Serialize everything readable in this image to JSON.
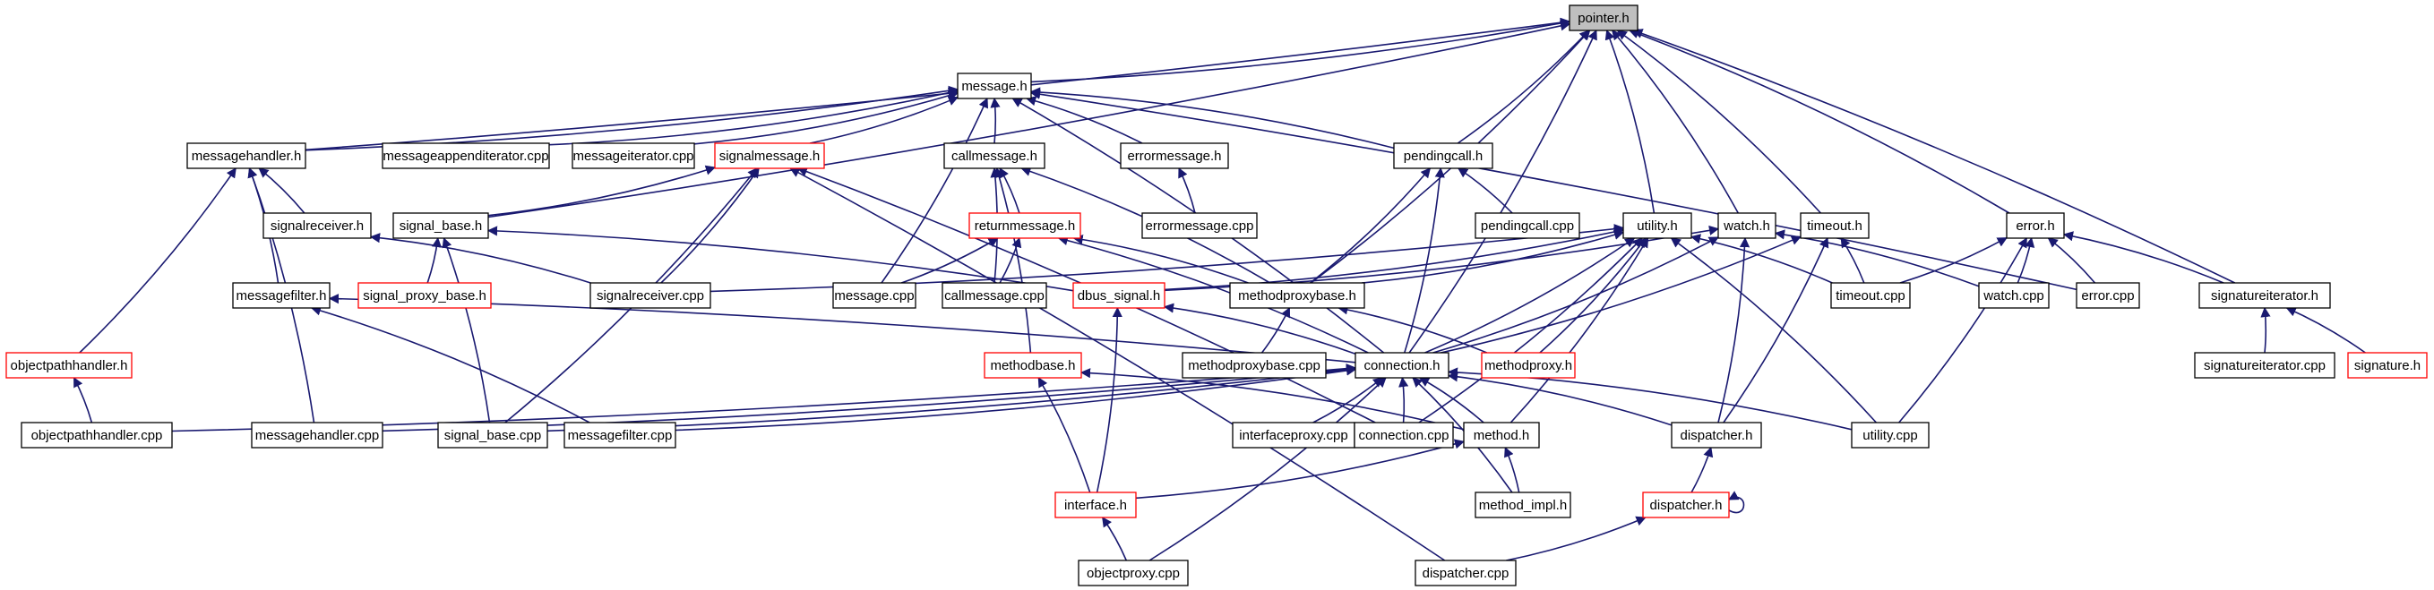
{
  "colors": {
    "edge": "#191970",
    "box_border": "#000000",
    "incomplete_border": "#ff0000",
    "root_fill": "#bfbfbf"
  },
  "nodes": [
    {
      "id": "pointer_h",
      "label": "pointer.h",
      "style": "root"
    },
    {
      "id": "message_h",
      "label": "message.h",
      "style": "normal"
    },
    {
      "id": "messagehandler_h",
      "label": "messagehandler.h",
      "style": "normal"
    },
    {
      "id": "messageappenditerator_cpp",
      "label": "messageappenditerator.cpp",
      "style": "normal"
    },
    {
      "id": "messageiterator_cpp",
      "label": "messageiterator.cpp",
      "style": "normal"
    },
    {
      "id": "signalmessage_h",
      "label": "signalmessage.h",
      "style": "red"
    },
    {
      "id": "callmessage_h",
      "label": "callmessage.h",
      "style": "normal"
    },
    {
      "id": "errormessage_h",
      "label": "errormessage.h",
      "style": "normal"
    },
    {
      "id": "pendingcall_h",
      "label": "pendingcall.h",
      "style": "normal"
    },
    {
      "id": "signalreceiver_h",
      "label": "signalreceiver.h",
      "style": "normal"
    },
    {
      "id": "signal_base_h",
      "label": "signal_base.h",
      "style": "normal"
    },
    {
      "id": "returnmessage_h",
      "label": "returnmessage.h",
      "style": "red"
    },
    {
      "id": "errormessage_cpp",
      "label": "errormessage.cpp",
      "style": "normal"
    },
    {
      "id": "pendingcall_cpp",
      "label": "pendingcall.cpp",
      "style": "normal"
    },
    {
      "id": "utility_h",
      "label": "utility.h",
      "style": "normal"
    },
    {
      "id": "watch_h",
      "label": "watch.h",
      "style": "normal"
    },
    {
      "id": "timeout_h",
      "label": "timeout.h",
      "style": "normal"
    },
    {
      "id": "error_h",
      "label": "error.h",
      "style": "normal"
    },
    {
      "id": "messagefilter_h",
      "label": "messagefilter.h",
      "style": "normal"
    },
    {
      "id": "signal_proxy_base_h",
      "label": "signal_proxy_base.h",
      "style": "red"
    },
    {
      "id": "signalreceiver_cpp",
      "label": "signalreceiver.cpp",
      "style": "normal"
    },
    {
      "id": "message_cpp",
      "label": "message.cpp",
      "style": "normal"
    },
    {
      "id": "callmessage_cpp",
      "label": "callmessage.cpp",
      "style": "normal"
    },
    {
      "id": "dbus_signal_h",
      "label": "dbus_signal.h",
      "style": "red"
    },
    {
      "id": "methodproxybase_h",
      "label": "methodproxybase.h",
      "style": "normal"
    },
    {
      "id": "timeout_cpp",
      "label": "timeout.cpp",
      "style": "normal"
    },
    {
      "id": "watch_cpp",
      "label": "watch.cpp",
      "style": "normal"
    },
    {
      "id": "error_cpp",
      "label": "error.cpp",
      "style": "normal"
    },
    {
      "id": "signatureiterator_h",
      "label": "signatureiterator.h",
      "style": "normal"
    },
    {
      "id": "objectpathhandler_h",
      "label": "objectpathhandler.h",
      "style": "red"
    },
    {
      "id": "methodbase_h",
      "label": "methodbase.h",
      "style": "red"
    },
    {
      "id": "methodproxybase_cpp",
      "label": "methodproxybase.cpp",
      "style": "normal"
    },
    {
      "id": "connection_h",
      "label": "connection.h",
      "style": "normal"
    },
    {
      "id": "methodproxy_h",
      "label": "methodproxy.h",
      "style": "red"
    },
    {
      "id": "signatureiterator_cpp",
      "label": "signatureiterator.cpp",
      "style": "normal"
    },
    {
      "id": "signature_h",
      "label": "signature.h",
      "style": "red"
    },
    {
      "id": "objectpathhandler_cpp",
      "label": "objectpathhandler.cpp",
      "style": "normal"
    },
    {
      "id": "messagehandler_cpp",
      "label": "messagehandler.cpp",
      "style": "normal"
    },
    {
      "id": "signal_base_cpp",
      "label": "signal_base.cpp",
      "style": "normal"
    },
    {
      "id": "messagefilter_cpp",
      "label": "messagefilter.cpp",
      "style": "normal"
    },
    {
      "id": "interfaceproxy_cpp",
      "label": "interfaceproxy.cpp",
      "style": "normal"
    },
    {
      "id": "connection_cpp",
      "label": "connection.cpp",
      "style": "normal"
    },
    {
      "id": "method_h",
      "label": "method.h",
      "style": "normal"
    },
    {
      "id": "dispatcher_h",
      "label": "dispatcher.h",
      "style": "normal"
    },
    {
      "id": "utility_cpp",
      "label": "utility.cpp",
      "style": "normal"
    },
    {
      "id": "interface_h",
      "label": "interface.h",
      "style": "red"
    },
    {
      "id": "method_impl_h",
      "label": "method_impl.h",
      "style": "normal"
    },
    {
      "id": "dispatcher_h_red",
      "label": "dispatcher.h",
      "style": "red"
    },
    {
      "id": "objectproxy_cpp",
      "label": "objectproxy.cpp",
      "style": "normal"
    },
    {
      "id": "dispatcher_cpp",
      "label": "dispatcher.cpp",
      "style": "normal"
    }
  ],
  "edges": [
    [
      "message_h",
      "pointer_h"
    ],
    [
      "messagehandler_h",
      "pointer_h"
    ],
    [
      "signal_base_h",
      "pointer_h"
    ],
    [
      "pendingcall_h",
      "pointer_h"
    ],
    [
      "methodproxybase_h",
      "pointer_h"
    ],
    [
      "connection_h",
      "pointer_h"
    ],
    [
      "utility_h",
      "pointer_h"
    ],
    [
      "watch_h",
      "pointer_h"
    ],
    [
      "timeout_h",
      "pointer_h"
    ],
    [
      "error_h",
      "pointer_h"
    ],
    [
      "signatureiterator_h",
      "pointer_h"
    ],
    [
      "messagehandler_h",
      "message_h"
    ],
    [
      "messageappenditerator_cpp",
      "message_h"
    ],
    [
      "messageiterator_cpp",
      "message_h"
    ],
    [
      "signalmessage_h",
      "message_h"
    ],
    [
      "callmessage_h",
      "message_h"
    ],
    [
      "errormessage_h",
      "message_h"
    ],
    [
      "pendingcall_h",
      "message_h"
    ],
    [
      "message_cpp",
      "message_h"
    ],
    [
      "connection_h",
      "message_h"
    ],
    [
      "error_cpp",
      "message_h"
    ],
    [
      "signalreceiver_h",
      "messagehandler_h"
    ],
    [
      "messagefilter_h",
      "messagehandler_h"
    ],
    [
      "objectpathhandler_h",
      "messagehandler_h"
    ],
    [
      "messagehandler_cpp",
      "messagehandler_h"
    ],
    [
      "signal_base_h",
      "signalmessage_h"
    ],
    [
      "signalreceiver_cpp",
      "signalmessage_h"
    ],
    [
      "signal_base_cpp",
      "signalmessage_h"
    ],
    [
      "connection_cpp",
      "signalmessage_h"
    ],
    [
      "dispatcher_cpp",
      "signalmessage_h"
    ],
    [
      "returnmessage_h",
      "callmessage_h"
    ],
    [
      "callmessage_cpp",
      "callmessage_h"
    ],
    [
      "methodproxybase_h",
      "callmessage_h"
    ],
    [
      "methodbase_h",
      "callmessage_h"
    ],
    [
      "errormessage_cpp",
      "errormessage_h"
    ],
    [
      "pendingcall_cpp",
      "pendingcall_h"
    ],
    [
      "methodproxybase_h",
      "pendingcall_h"
    ],
    [
      "connection_h",
      "pendingcall_h"
    ],
    [
      "signalreceiver_cpp",
      "signalreceiver_h"
    ],
    [
      "signal_proxy_base_h",
      "signal_base_h"
    ],
    [
      "dbus_signal_h",
      "signal_base_h"
    ],
    [
      "signal_base_cpp",
      "signal_base_h"
    ],
    [
      "message_cpp",
      "returnmessage_h"
    ],
    [
      "callmessage_cpp",
      "returnmessage_h"
    ],
    [
      "methodproxybase_h",
      "returnmessage_h"
    ],
    [
      "connection_h",
      "returnmessage_h"
    ],
    [
      "signalreceiver_cpp",
      "utility_h"
    ],
    [
      "dbus_signal_h",
      "utility_h"
    ],
    [
      "methodproxybase_h",
      "utility_h"
    ],
    [
      "methodproxy_h",
      "utility_h"
    ],
    [
      "connection_cpp",
      "utility_h"
    ],
    [
      "method_h",
      "utility_h"
    ],
    [
      "utility_cpp",
      "utility_h"
    ],
    [
      "timeout_cpp",
      "utility_h"
    ],
    [
      "connection_h",
      "utility_h"
    ],
    [
      "connection_h",
      "watch_h"
    ],
    [
      "watch_cpp",
      "watch_h"
    ],
    [
      "dispatcher_h",
      "watch_h"
    ],
    [
      "dbus_signal_h",
      "watch_h"
    ],
    [
      "connection_h",
      "timeout_h"
    ],
    [
      "timeout_cpp",
      "timeout_h"
    ],
    [
      "dispatcher_h",
      "timeout_h"
    ],
    [
      "timeout_cpp",
      "error_h"
    ],
    [
      "watch_cpp",
      "error_h"
    ],
    [
      "error_cpp",
      "error_h"
    ],
    [
      "signatureiterator_h",
      "error_h"
    ],
    [
      "utility_cpp",
      "error_h"
    ],
    [
      "signatureiterator_cpp",
      "signatureiterator_h"
    ],
    [
      "signature_h",
      "signatureiterator_h"
    ],
    [
      "connection_h",
      "messagefilter_h"
    ],
    [
      "messagefilter_cpp",
      "messagefilter_h"
    ],
    [
      "objectpathhandler_cpp",
      "objectpathhandler_h"
    ],
    [
      "connection_h",
      "dbus_signal_h"
    ],
    [
      "interface_h",
      "dbus_signal_h"
    ],
    [
      "methodproxybase_cpp",
      "methodproxybase_h"
    ],
    [
      "methodproxy_h",
      "methodproxybase_h"
    ],
    [
      "interface_h",
      "methodbase_h"
    ],
    [
      "method_h",
      "methodbase_h"
    ],
    [
      "objectpathhandler_cpp",
      "connection_h"
    ],
    [
      "messagehandler_cpp",
      "connection_h"
    ],
    [
      "signal_base_cpp",
      "connection_h"
    ],
    [
      "messagefilter_cpp",
      "connection_h"
    ],
    [
      "interfaceproxy_cpp",
      "connection_h"
    ],
    [
      "connection_cpp",
      "connection_h"
    ],
    [
      "method_h",
      "connection_h"
    ],
    [
      "dispatcher_h",
      "connection_h"
    ],
    [
      "utility_cpp",
      "connection_h"
    ],
    [
      "method_impl_h",
      "connection_h"
    ],
    [
      "objectproxy_cpp",
      "connection_h"
    ],
    [
      "interface_h",
      "method_h"
    ],
    [
      "method_impl_h",
      "method_h"
    ],
    [
      "dispatcher_h_red",
      "dispatcher_h"
    ],
    [
      "dispatcher_h_red",
      "dispatcher_h_red"
    ],
    [
      "dispatcher_cpp",
      "dispatcher_h_red"
    ],
    [
      "objectproxy_cpp",
      "interface_h"
    ]
  ]
}
